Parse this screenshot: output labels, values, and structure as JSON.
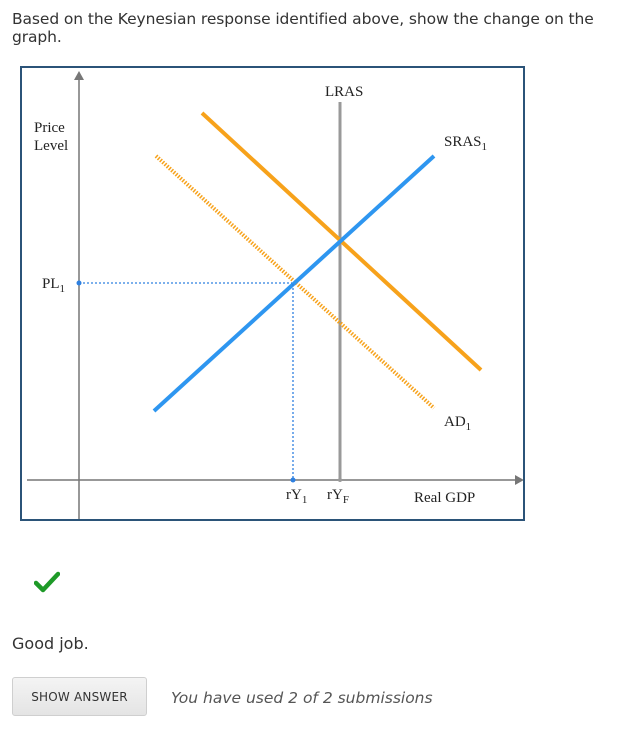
{
  "question": {
    "text": "Based on the Keynesian response identified above, show the change on the graph."
  },
  "graph": {
    "labels": {
      "lras": "LRAS",
      "sras_base": "SRAS",
      "sras_sub": "1",
      "ad_base": "AD",
      "ad_sub": "1",
      "price_level_line1": "Price",
      "price_level_line2": "Level",
      "pl_base": "PL",
      "pl_sub": "1",
      "ry1_base": "rY",
      "ry1_sub": "1",
      "ryf_base": "rY",
      "ryf_sub": "F",
      "x_axis": "Real GDP"
    },
    "colors": {
      "frame": "#2b5378",
      "axes": "#777777",
      "lras": "#999999",
      "sras": "#2e96f0",
      "ad": "#f7a21b",
      "guide": "#2e80e0"
    }
  },
  "feedback": {
    "status_icon": "checkmark-icon",
    "message": "Good job."
  },
  "actions": {
    "show_answer_label": "SHOW ANSWER",
    "submissions_text": "You have used 2 of 2 submissions"
  }
}
